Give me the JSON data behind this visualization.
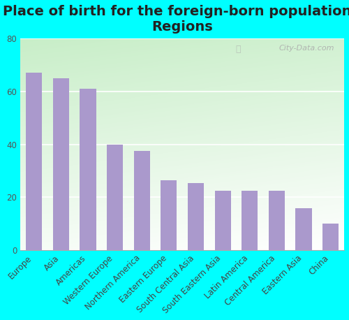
{
  "title": "Place of birth for the foreign-born population -\nRegions",
  "categories": [
    "Europe",
    "Asia",
    "Americas",
    "Western Europe",
    "Northern America",
    "Eastern Europe",
    "South Central Asia",
    "South Eastern Asia",
    "Latin America",
    "Central America",
    "Eastern Asia",
    "China"
  ],
  "values": [
    67,
    65,
    61,
    40,
    37.5,
    26.5,
    25.5,
    22.5,
    22.5,
    22.5,
    16,
    10
  ],
  "bar_color": "#aa99cc",
  "background_outer": "#00ffff",
  "ylabel_ticks": [
    0,
    20,
    40,
    60,
    80
  ],
  "ylim": [
    0,
    80
  ],
  "title_fontsize": 14,
  "tick_fontsize": 8.5,
  "watermark": "City-Data.com"
}
